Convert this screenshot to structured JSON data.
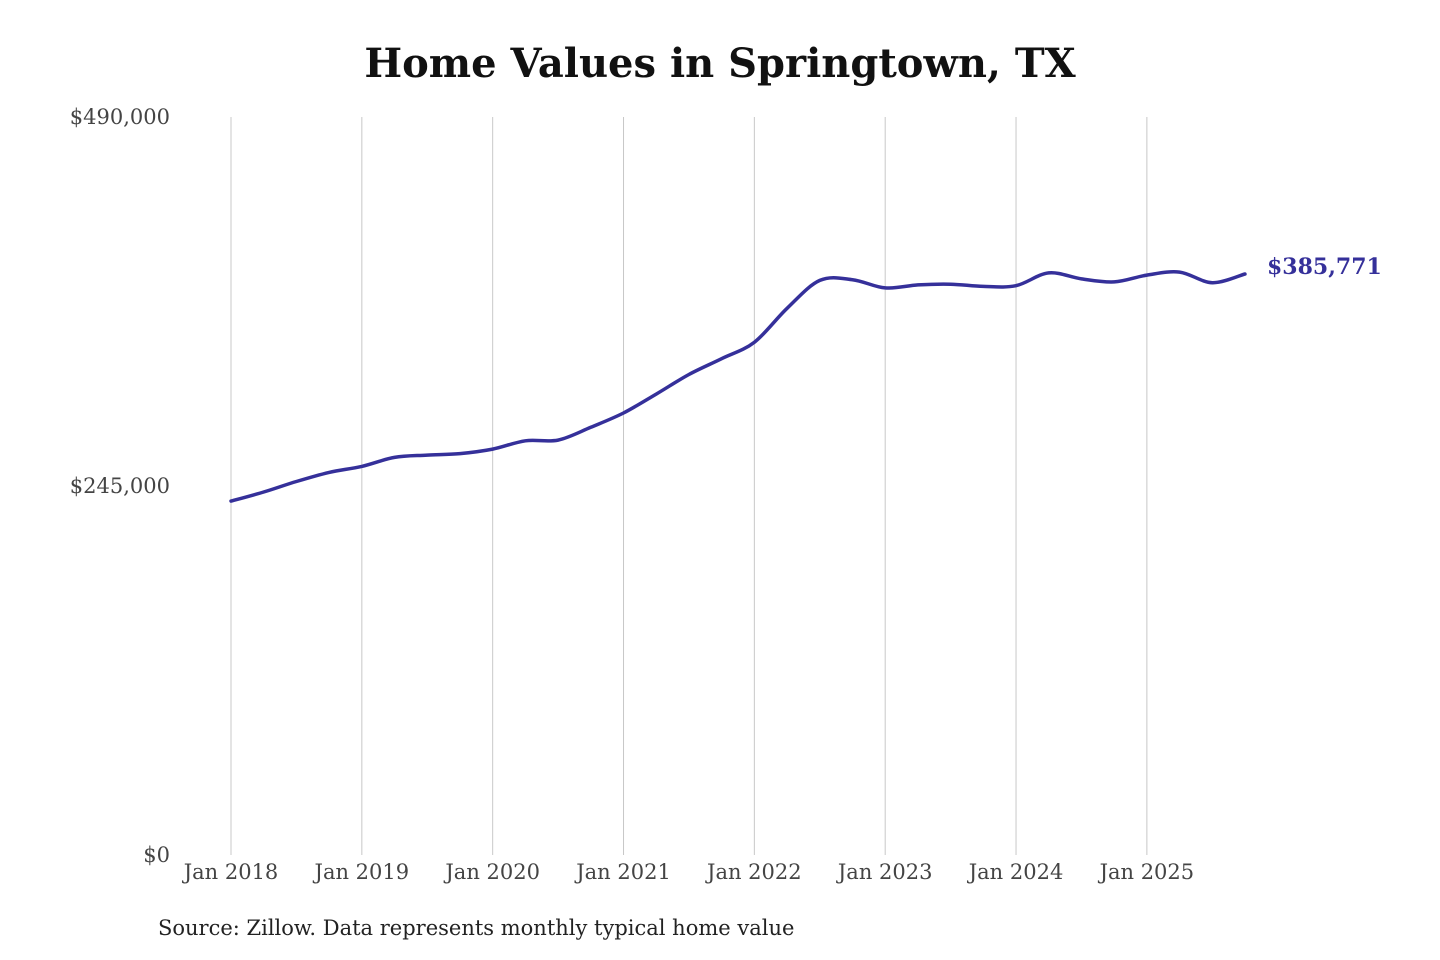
{
  "chart_data": {
    "type": "line",
    "title": "Home Values in Springtown, TX",
    "xlabel": "",
    "ylabel": "",
    "ylim": [
      0,
      490000
    ],
    "yticks": [
      {
        "value": 0,
        "label": "$0"
      },
      {
        "value": 245000,
        "label": "$245,000"
      },
      {
        "value": 490000,
        "label": "$490,000"
      }
    ],
    "xticks": [
      {
        "value": 2018.0,
        "label": "Jan 2018"
      },
      {
        "value": 2019.0,
        "label": "Jan 2019"
      },
      {
        "value": 2020.0,
        "label": "Jan 2020"
      },
      {
        "value": 2021.0,
        "label": "Jan 2021"
      },
      {
        "value": 2022.0,
        "label": "Jan 2022"
      },
      {
        "value": 2023.0,
        "label": "Jan 2023"
      },
      {
        "value": 2024.0,
        "label": "Jan 2024"
      },
      {
        "value": 2025.0,
        "label": "Jan 2025"
      }
    ],
    "xlim": [
      2018.0,
      2025.75
    ],
    "grid": "vertical",
    "legend": "none",
    "colors": {
      "line": "#35309a",
      "grid": "#c8c8c8",
      "tick_text": "#444444"
    },
    "end_label": "$385,771",
    "series": [
      {
        "points": [
          [
            2018.0,
            235000
          ],
          [
            2018.25,
            241000
          ],
          [
            2018.5,
            248000
          ],
          [
            2018.75,
            254000
          ],
          [
            2019.0,
            258000
          ],
          [
            2019.25,
            264000
          ],
          [
            2019.5,
            265500
          ],
          [
            2019.75,
            266500
          ],
          [
            2020.0,
            269500
          ],
          [
            2020.25,
            275000
          ],
          [
            2020.5,
            275500
          ],
          [
            2020.75,
            284000
          ],
          [
            2021.0,
            293500
          ],
          [
            2021.25,
            306000
          ],
          [
            2021.5,
            319000
          ],
          [
            2021.75,
            329500
          ],
          [
            2022.0,
            340500
          ],
          [
            2022.25,
            363000
          ],
          [
            2022.5,
            381500
          ],
          [
            2022.75,
            382000
          ],
          [
            2023.0,
            376500
          ],
          [
            2023.25,
            378500
          ],
          [
            2023.5,
            379000
          ],
          [
            2023.75,
            377500
          ],
          [
            2024.0,
            378000
          ],
          [
            2024.25,
            386500
          ],
          [
            2024.5,
            382500
          ],
          [
            2024.75,
            380500
          ],
          [
            2025.0,
            385000
          ],
          [
            2025.25,
            387000
          ],
          [
            2025.5,
            380000
          ],
          [
            2025.75,
            385771
          ]
        ]
      }
    ]
  },
  "footer": {
    "source": "Source: Zillow. Data represents monthly typical home value"
  }
}
